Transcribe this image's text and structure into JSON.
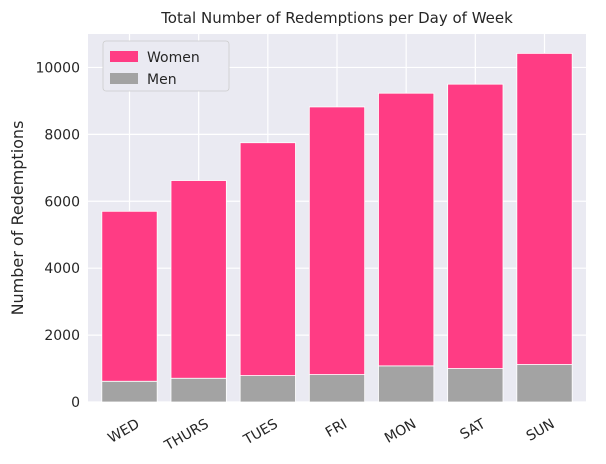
{
  "chart_data": {
    "type": "bar",
    "stacked": true,
    "title": "Total Number of Redemptions per Day of Week",
    "xlabel": "",
    "ylabel": "Number of Redemptions",
    "categories": [
      "WED",
      "THURS",
      "TUES",
      "FRI",
      "MON",
      "SAT",
      "SUN"
    ],
    "series": [
      {
        "name": "Men",
        "color": "#a3a3a3",
        "values": [
          620,
          710,
          790,
          820,
          1080,
          1000,
          1120
        ]
      },
      {
        "name": "Women",
        "color": "#ff3c84",
        "values": [
          5080,
          5910,
          6960,
          8000,
          8150,
          8500,
          9300
        ]
      }
    ],
    "totals": [
      5700,
      6620,
      7750,
      8820,
      9230,
      9500,
      10420
    ],
    "ylim": [
      0,
      11000
    ],
    "yticks": [
      0,
      2000,
      4000,
      6000,
      8000,
      10000
    ],
    "grid": true,
    "legend": {
      "placement": "top-left",
      "order": [
        "Women",
        "Men"
      ]
    },
    "background": "#eaeaf2"
  }
}
